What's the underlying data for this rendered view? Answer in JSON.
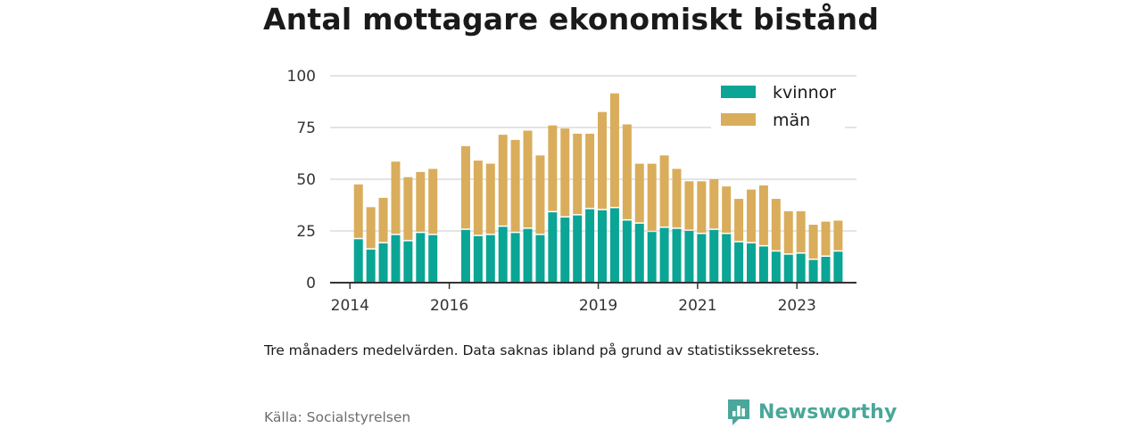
{
  "title": "Antal mottagare ekonomiskt bistånd",
  "note": "Tre månaders medelvärden. Data saknas ibland på grund av statistikssekretess.",
  "source": "Källa: Socialstyrelsen",
  "brand": {
    "name": "Newsworthy",
    "color": "#4aa79a",
    "icon": "bar-chart-speech-bubble-icon"
  },
  "chart_data": {
    "type": "bar",
    "stacked": true,
    "ylim": [
      0,
      100
    ],
    "yticks": [
      0,
      25,
      50,
      75,
      100
    ],
    "xlim": [
      2013.6,
      2024.2
    ],
    "xticks": [
      2014,
      2016,
      2019,
      2021,
      2023
    ],
    "grid": true,
    "legend_position": "top-right",
    "x": [
      2014.17,
      2014.42,
      2014.67,
      2014.92,
      2015.17,
      2015.42,
      2015.67,
      2016.33,
      2016.58,
      2016.83,
      2017.08,
      2017.33,
      2017.58,
      2017.83,
      2018.08,
      2018.33,
      2018.58,
      2018.83,
      2019.08,
      2019.33,
      2019.58,
      2019.83,
      2020.08,
      2020.33,
      2020.58,
      2020.83,
      2021.08,
      2021.33,
      2021.58,
      2021.83,
      2022.08,
      2022.33,
      2022.58,
      2022.83,
      2023.08,
      2023.33,
      2023.58,
      2023.83
    ],
    "series": [
      {
        "name": "kvinnor",
        "color": "#0aa595",
        "values": [
          21,
          16,
          19,
          23,
          20,
          24,
          23,
          25.5,
          22.5,
          23,
          27,
          24,
          26,
          23,
          34,
          31.5,
          32.5,
          35.5,
          35,
          36,
          30,
          28.5,
          24.5,
          26.5,
          26,
          25,
          23.5,
          25.5,
          23.5,
          19.5,
          19,
          17.5,
          15,
          13.5,
          14,
          11,
          12.5,
          15
        ]
      },
      {
        "name": "män",
        "color": "#d9ad5b",
        "values": [
          26.5,
          20.5,
          22,
          35.5,
          31,
          29.5,
          32,
          40.5,
          36.5,
          34.5,
          44.5,
          45,
          47.5,
          38.5,
          42,
          43,
          39.5,
          36.5,
          47.5,
          55.5,
          46.5,
          29,
          33,
          35,
          29,
          24,
          25.5,
          24.5,
          23,
          21,
          26,
          29.5,
          25.5,
          21,
          20.5,
          17,
          17,
          15
        ]
      }
    ]
  }
}
